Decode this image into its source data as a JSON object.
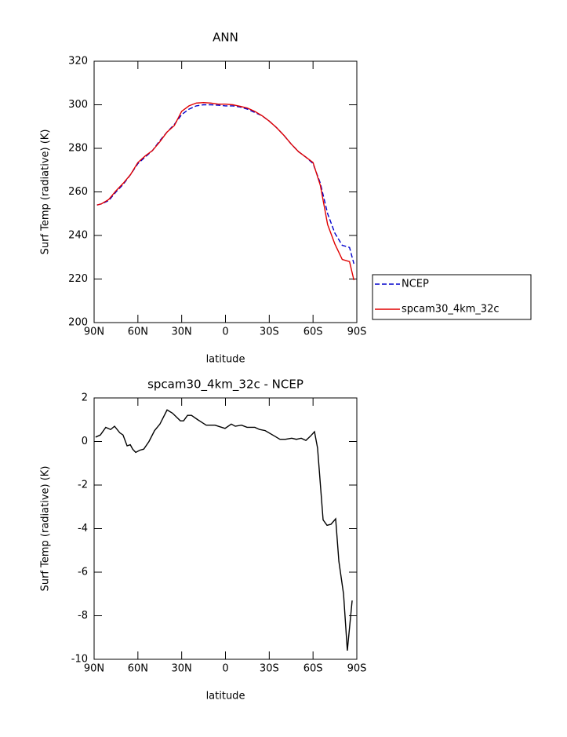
{
  "chart_data": [
    {
      "type": "line",
      "title": "ANN",
      "xlabel": "latitude",
      "ylabel": "Surf Temp (radiative) (K)",
      "x": [
        88,
        85,
        80,
        75,
        70,
        65,
        60,
        55,
        50,
        45,
        40,
        35,
        30,
        25,
        20,
        15,
        10,
        5,
        0,
        -5,
        -10,
        -15,
        -20,
        -25,
        -30,
        -35,
        -40,
        -45,
        -50,
        -55,
        -60,
        -65,
        -70,
        -75,
        -80,
        -85,
        -88
      ],
      "series": [
        {
          "name": "NCEP",
          "color": "#0000cc",
          "dash": true,
          "values": [
            254,
            254.5,
            256,
            260,
            263.5,
            268,
            273,
            276,
            279,
            283.5,
            287.5,
            291,
            295.5,
            298,
            299.5,
            300,
            300,
            299.8,
            299.5,
            299.5,
            299,
            298,
            296.5,
            295,
            292.5,
            289.5,
            286,
            282,
            278.5,
            276,
            273,
            264,
            250,
            241,
            235.5,
            234.5,
            227
          ]
        },
        {
          "name": "spcam30_4km_32c",
          "color": "#e00000",
          "dash": false,
          "values": [
            254,
            254.5,
            256.5,
            260.5,
            264,
            268,
            273.5,
            276.5,
            279,
            283,
            287.5,
            290.5,
            297,
            299.5,
            300.8,
            301,
            300.8,
            300.3,
            300.3,
            300,
            299.3,
            298.5,
            297,
            295,
            292.5,
            289.5,
            286,
            282,
            278.5,
            276,
            273.5,
            263,
            245,
            236,
            229,
            228,
            219.5
          ]
        }
      ],
      "xlim": [
        90,
        -90
      ],
      "xticks": [
        {
          "value": 90,
          "label": "90N"
        },
        {
          "value": 60,
          "label": "60N"
        },
        {
          "value": 30,
          "label": "30N"
        },
        0,
        {
          "value": -30,
          "label": "30S"
        },
        {
          "value": -60,
          "label": "60S"
        },
        {
          "value": -90,
          "label": "90S"
        }
      ],
      "ylim": [
        200,
        320
      ],
      "yticks": [
        200,
        220,
        240,
        260,
        280,
        300,
        320
      ],
      "legend": "right"
    },
    {
      "type": "line",
      "title": "spcam30_4km_32c - NCEP",
      "xlabel": "latitude",
      "ylabel": "Surf Temp (radiative) (K)",
      "x": [
        89,
        85.7,
        82,
        78.7,
        76,
        72.4,
        70.2,
        67.4,
        65.2,
        63.6,
        61.5,
        58.7,
        56,
        52.4,
        48.6,
        44.9,
        40,
        36.3,
        30.9,
        28.7,
        26,
        23.3,
        19,
        13.2,
        7.2,
        0.3,
        -4,
        -6.7,
        -11,
        -14.8,
        -20.1,
        -23.4,
        -27.2,
        -33.6,
        -37.3,
        -41.1,
        -45.4,
        -48.6,
        -51.9,
        -55.1,
        -58.3,
        -61,
        -63.1,
        -66.9,
        -69.6,
        -72.3,
        -75.5,
        -77.7,
        -80.9,
        -83.5,
        -86.8
      ],
      "series": [
        {
          "color": "#000000",
          "dash": false,
          "values": [
            0.2,
            0.3,
            0.65,
            0.55,
            0.7,
            0.4,
            0.3,
            -0.2,
            -0.15,
            -0.35,
            -0.5,
            -0.4,
            -0.35,
            0,
            0.5,
            0.8,
            1.45,
            1.3,
            0.95,
            0.95,
            1.2,
            1.2,
            1.0,
            0.75,
            0.75,
            0.6,
            0.8,
            0.7,
            0.75,
            0.65,
            0.65,
            0.55,
            0.5,
            0.25,
            0.1,
            0.1,
            0.15,
            0.1,
            0.15,
            0.05,
            0.25,
            0.45,
            -0.3,
            -3.6,
            -3.85,
            -3.8,
            -3.55,
            -5.5,
            -7.0,
            -9.6,
            -7.3
          ]
        }
      ],
      "xlim": [
        90,
        -90
      ],
      "xticks": [
        {
          "value": 90,
          "label": "90N"
        },
        {
          "value": 60,
          "label": "60N"
        },
        {
          "value": 30,
          "label": "30N"
        },
        0,
        {
          "value": -30,
          "label": "30S"
        },
        {
          "value": -60,
          "label": "60S"
        },
        {
          "value": -90,
          "label": "90S"
        }
      ],
      "ylim": [
        -10,
        2
      ],
      "yticks": [
        -10,
        -8,
        -6,
        -4,
        -2,
        0,
        2
      ]
    }
  ]
}
